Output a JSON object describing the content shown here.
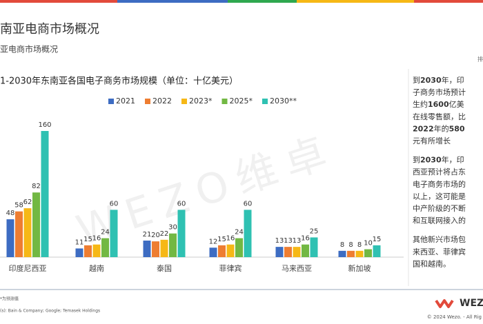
{
  "header": {
    "title": "南亚电商市场概况",
    "subtitle": "亚电商市场概况",
    "corner": "排"
  },
  "chart_data": {
    "type": "bar",
    "title": "1-2030年东南亚各国电子商务市场规模（单位：十亿美元）",
    "categories": [
      "印度尼西亚",
      "越南",
      "泰国",
      "菲律宾",
      "马来西亚",
      "新加坡"
    ],
    "series": [
      {
        "name": "2021",
        "color": "#3d6cc2",
        "values": [
          48,
          11,
          21,
          12,
          13,
          8
        ]
      },
      {
        "name": "2022",
        "color": "#ee7d31",
        "values": [
          58,
          15,
          20,
          15,
          13,
          8
        ]
      },
      {
        "name": "2023*",
        "color": "#f6b816",
        "values": [
          62,
          16,
          22,
          16,
          13,
          8
        ]
      },
      {
        "name": "2025*",
        "color": "#72b843",
        "values": [
          82,
          24,
          30,
          24,
          16,
          10
        ]
      },
      {
        "name": "2030**",
        "color": "#2fc1b2",
        "values": [
          160,
          60,
          60,
          60,
          25,
          15
        ]
      }
    ],
    "legend": "top",
    "data_labels": true
  },
  "sidebar": {
    "paragraphs": [
      [
        [
          "到",
          "2030",
          "年，印"
        ],
        [
          "子商务市场预计"
        ],
        [
          "生约",
          "1600",
          "亿美"
        ],
        [
          "在线零售额，比"
        ],
        [
          "",
          "2022",
          "年的",
          "580"
        ],
        [
          "元有所增长"
        ]
      ],
      [
        [
          "到",
          "2030",
          "年，印"
        ],
        [
          "西亚预计将占东"
        ],
        [
          "电子商务市场的"
        ],
        [
          "以上，这可能是"
        ],
        [
          "中产阶级的不断"
        ],
        [
          "和互联网接入的"
        ]
      ],
      [
        [
          "其他新兴市场包"
        ],
        [
          "来西亚、菲律宾"
        ],
        [
          "国和越南。"
        ]
      ]
    ]
  },
  "watermark": "WEZO维卓",
  "footer": {
    "note": "*为预测值",
    "source": "(s): Bain & Company; Google; Temasek Holdings",
    "copyright": "© 2024 Wezo. - All Rig",
    "logo": "WEZO"
  }
}
